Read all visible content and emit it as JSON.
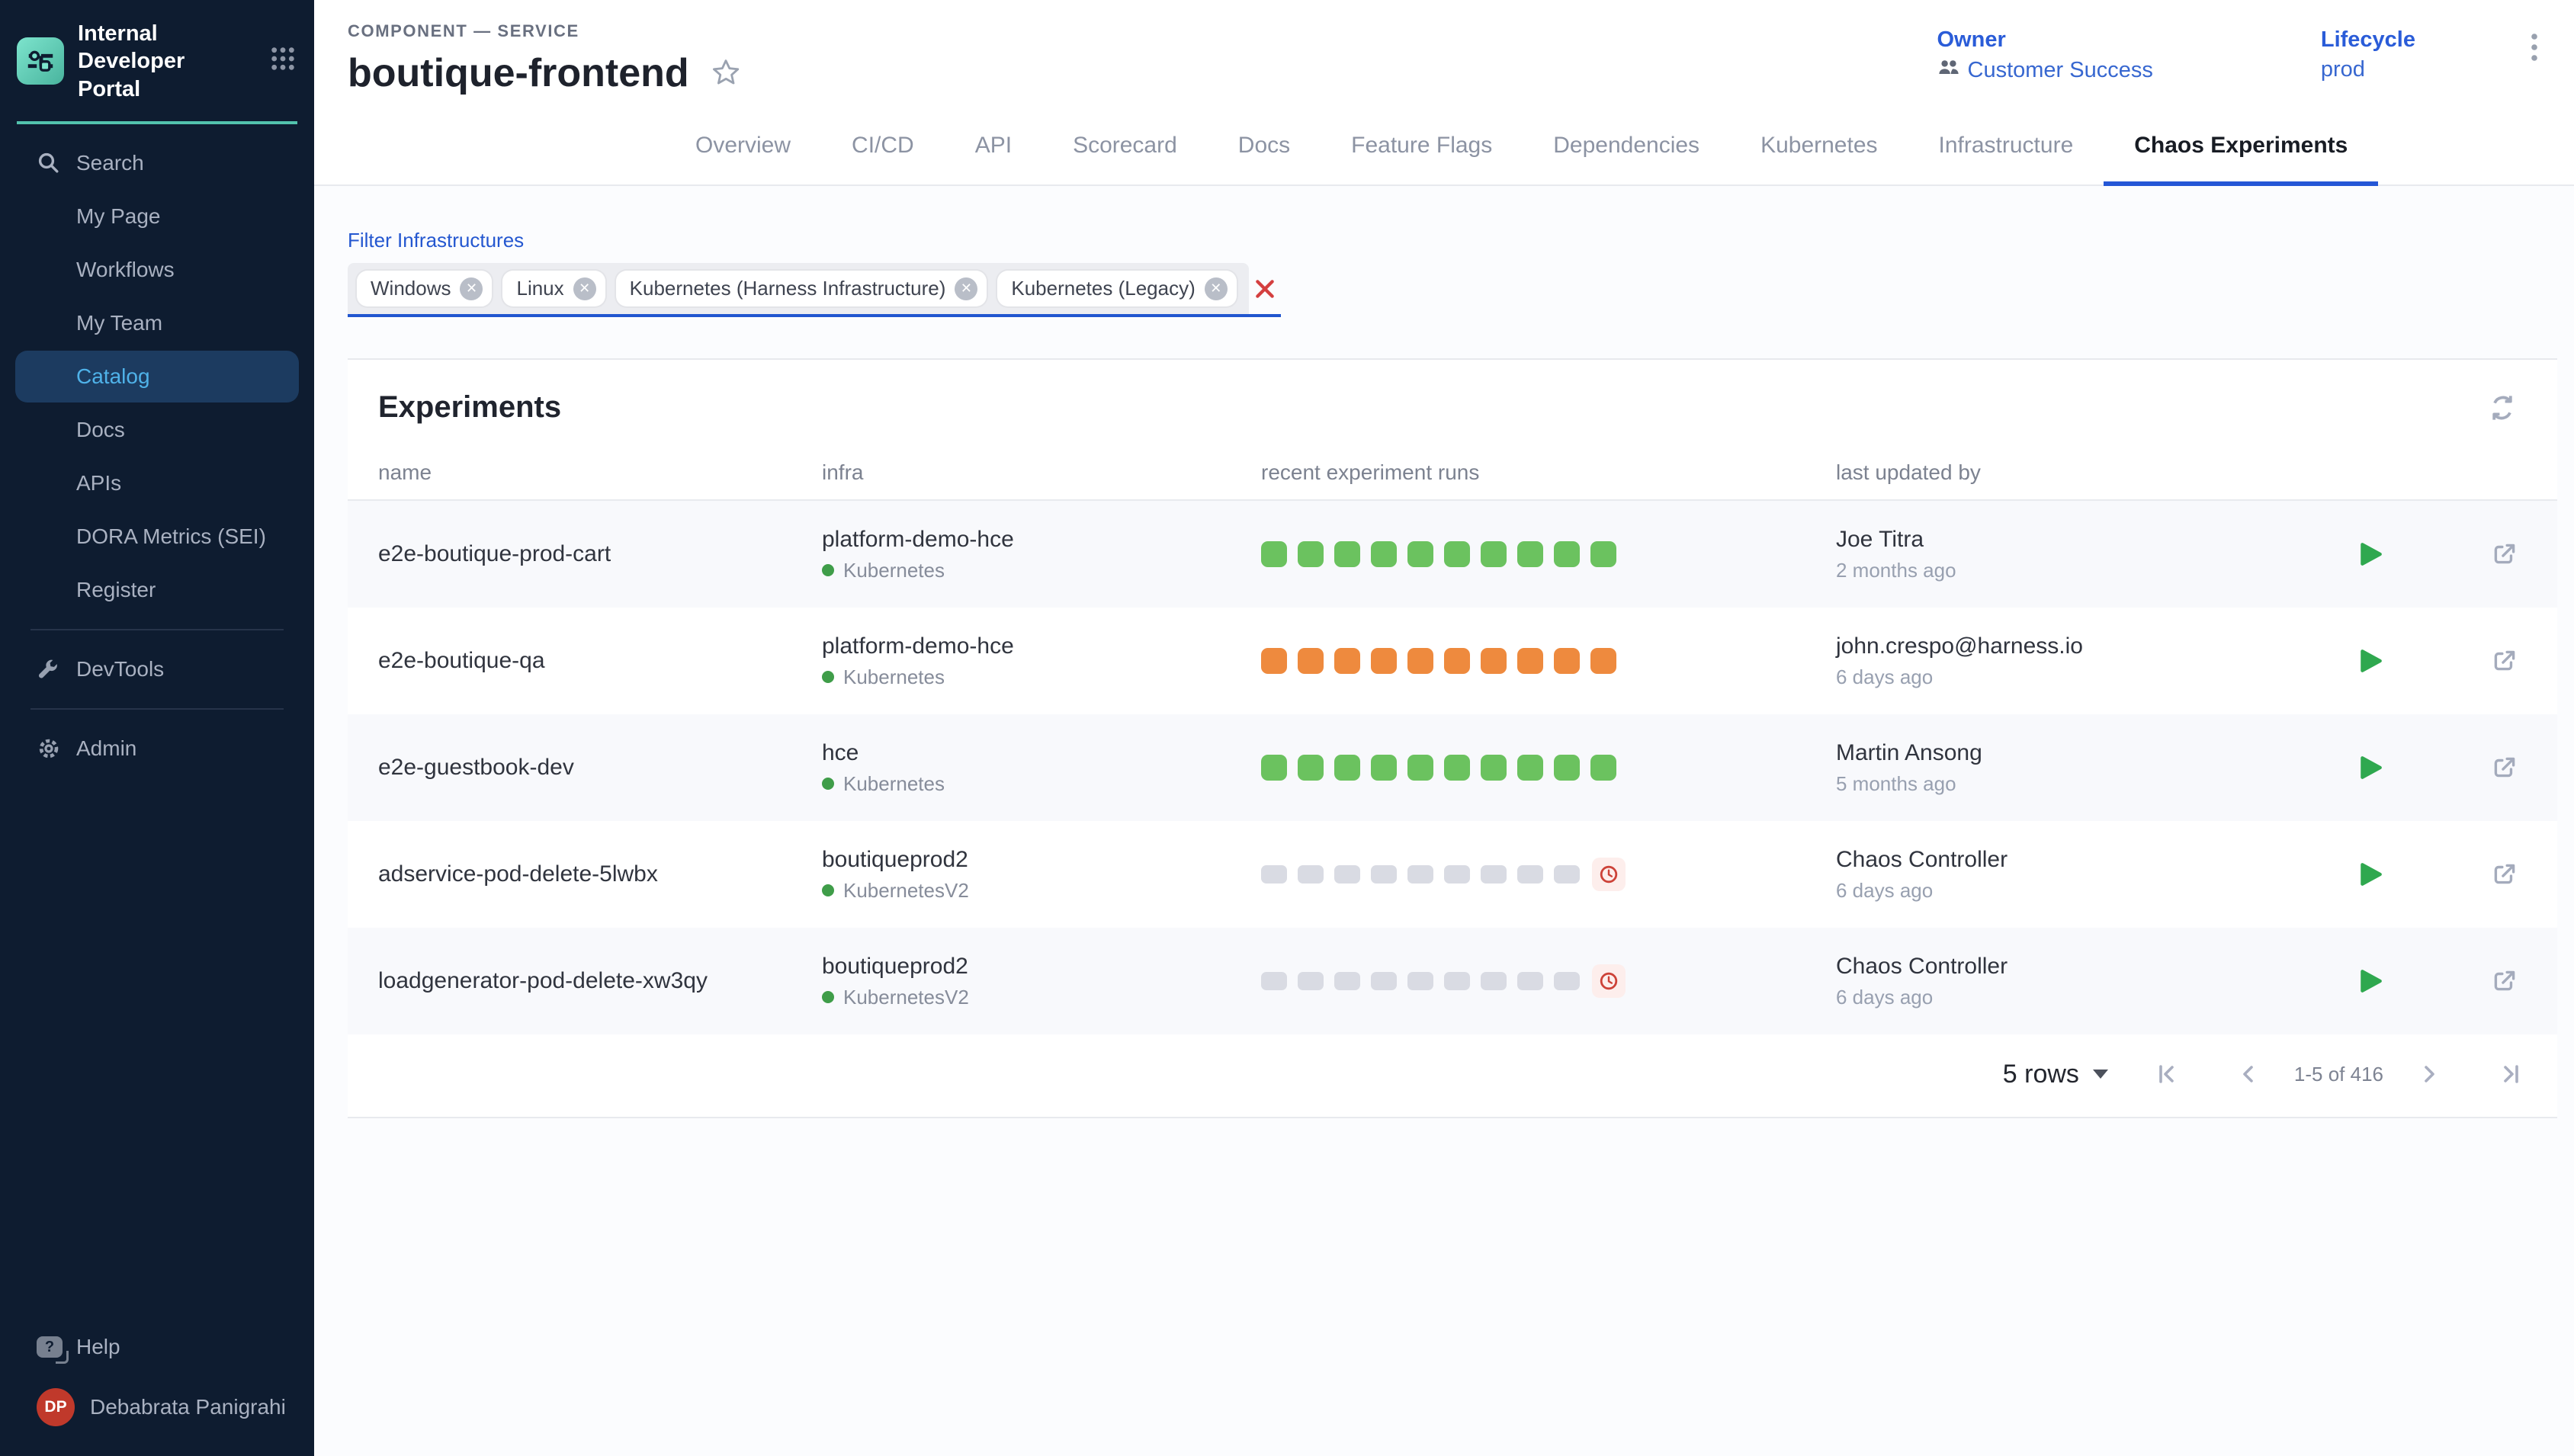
{
  "sidebar": {
    "logo_title": "Internal Developer Portal",
    "search_label": "Search",
    "items": [
      {
        "label": "My Page"
      },
      {
        "label": "Workflows"
      },
      {
        "label": "My Team"
      },
      {
        "label": "Catalog",
        "active": true
      },
      {
        "label": "Docs"
      },
      {
        "label": "APIs"
      },
      {
        "label": "DORA Metrics (SEI)"
      },
      {
        "label": "Register"
      }
    ],
    "devtools_label": "DevTools",
    "admin_label": "Admin",
    "help_label": "Help",
    "user": {
      "initials": "DP",
      "name": "Debabrata Panigrahi"
    }
  },
  "header": {
    "breadcrumb": "COMPONENT — SERVICE",
    "title": "boutique-frontend",
    "owner_label": "Owner",
    "owner_value": "Customer Success",
    "lifecycle_label": "Lifecycle",
    "lifecycle_value": "prod"
  },
  "tabs": {
    "labels": [
      "Overview",
      "CI/CD",
      "API",
      "Scorecard",
      "Docs",
      "Feature Flags",
      "Dependencies",
      "Kubernetes",
      "Infrastructure",
      "Chaos Experiments"
    ],
    "active": "Chaos Experiments"
  },
  "filter": {
    "label": "Filter Infrastructures",
    "chips": [
      "Windows",
      "Linux",
      "Kubernetes (Harness Infrastructure)",
      "Kubernetes (Legacy)"
    ]
  },
  "experiments": {
    "heading": "Experiments",
    "columns": {
      "name": "name",
      "infra": "infra",
      "runs": "recent experiment runs",
      "updated": "last updated by"
    },
    "rows": [
      {
        "name": "e2e-boutique-prod-cart",
        "infra_name": "platform-demo-hce",
        "infra_type": "Kubernetes",
        "runs": {
          "style": "green",
          "count": 10,
          "clock": false
        },
        "updated_by": "Joe Titra",
        "updated_at": "2 months ago"
      },
      {
        "name": "e2e-boutique-qa",
        "infra_name": "platform-demo-hce",
        "infra_type": "Kubernetes",
        "runs": {
          "style": "orange",
          "count": 10,
          "clock": false
        },
        "updated_by": "john.crespo@harness.io",
        "updated_at": "6 days ago"
      },
      {
        "name": "e2e-guestbook-dev",
        "infra_name": "hce",
        "infra_type": "Kubernetes",
        "runs": {
          "style": "green",
          "count": 10,
          "clock": false
        },
        "updated_by": "Martin Ansong",
        "updated_at": "5 months ago"
      },
      {
        "name": "adservice-pod-delete-5lwbx",
        "infra_name": "boutiqueprod2",
        "infra_type": "KubernetesV2",
        "runs": {
          "style": "gray",
          "count": 9,
          "clock": true
        },
        "updated_by": "Chaos Controller",
        "updated_at": "6 days ago"
      },
      {
        "name": "loadgenerator-pod-delete-xw3qy",
        "infra_name": "boutiqueprod2",
        "infra_type": "KubernetesV2",
        "runs": {
          "style": "gray",
          "count": 9,
          "clock": true
        },
        "updated_by": "Chaos Controller",
        "updated_at": "6 days ago"
      }
    ],
    "pagination": {
      "rows_label": "5 rows",
      "range": "1-5 of 416"
    }
  },
  "colors": {
    "sidebar_bg": "#0e1c30",
    "teal_accent": "#52c2ad",
    "active_item_bg": "#1c3b60",
    "active_item_text": "#4fb2e9",
    "accent_blue": "#2457d6",
    "link_blue": "#2a5cd8",
    "avatar_red": "#c0392b",
    "status_dot_green": "#3f9d49",
    "play_green": "#2fa84f",
    "clock_red": "#cd4238",
    "clock_bg": "#fdeeec",
    "runs": {
      "green": "#6bc25f",
      "orange": "#ee8a3e",
      "gray": "#d9dbe3"
    }
  }
}
